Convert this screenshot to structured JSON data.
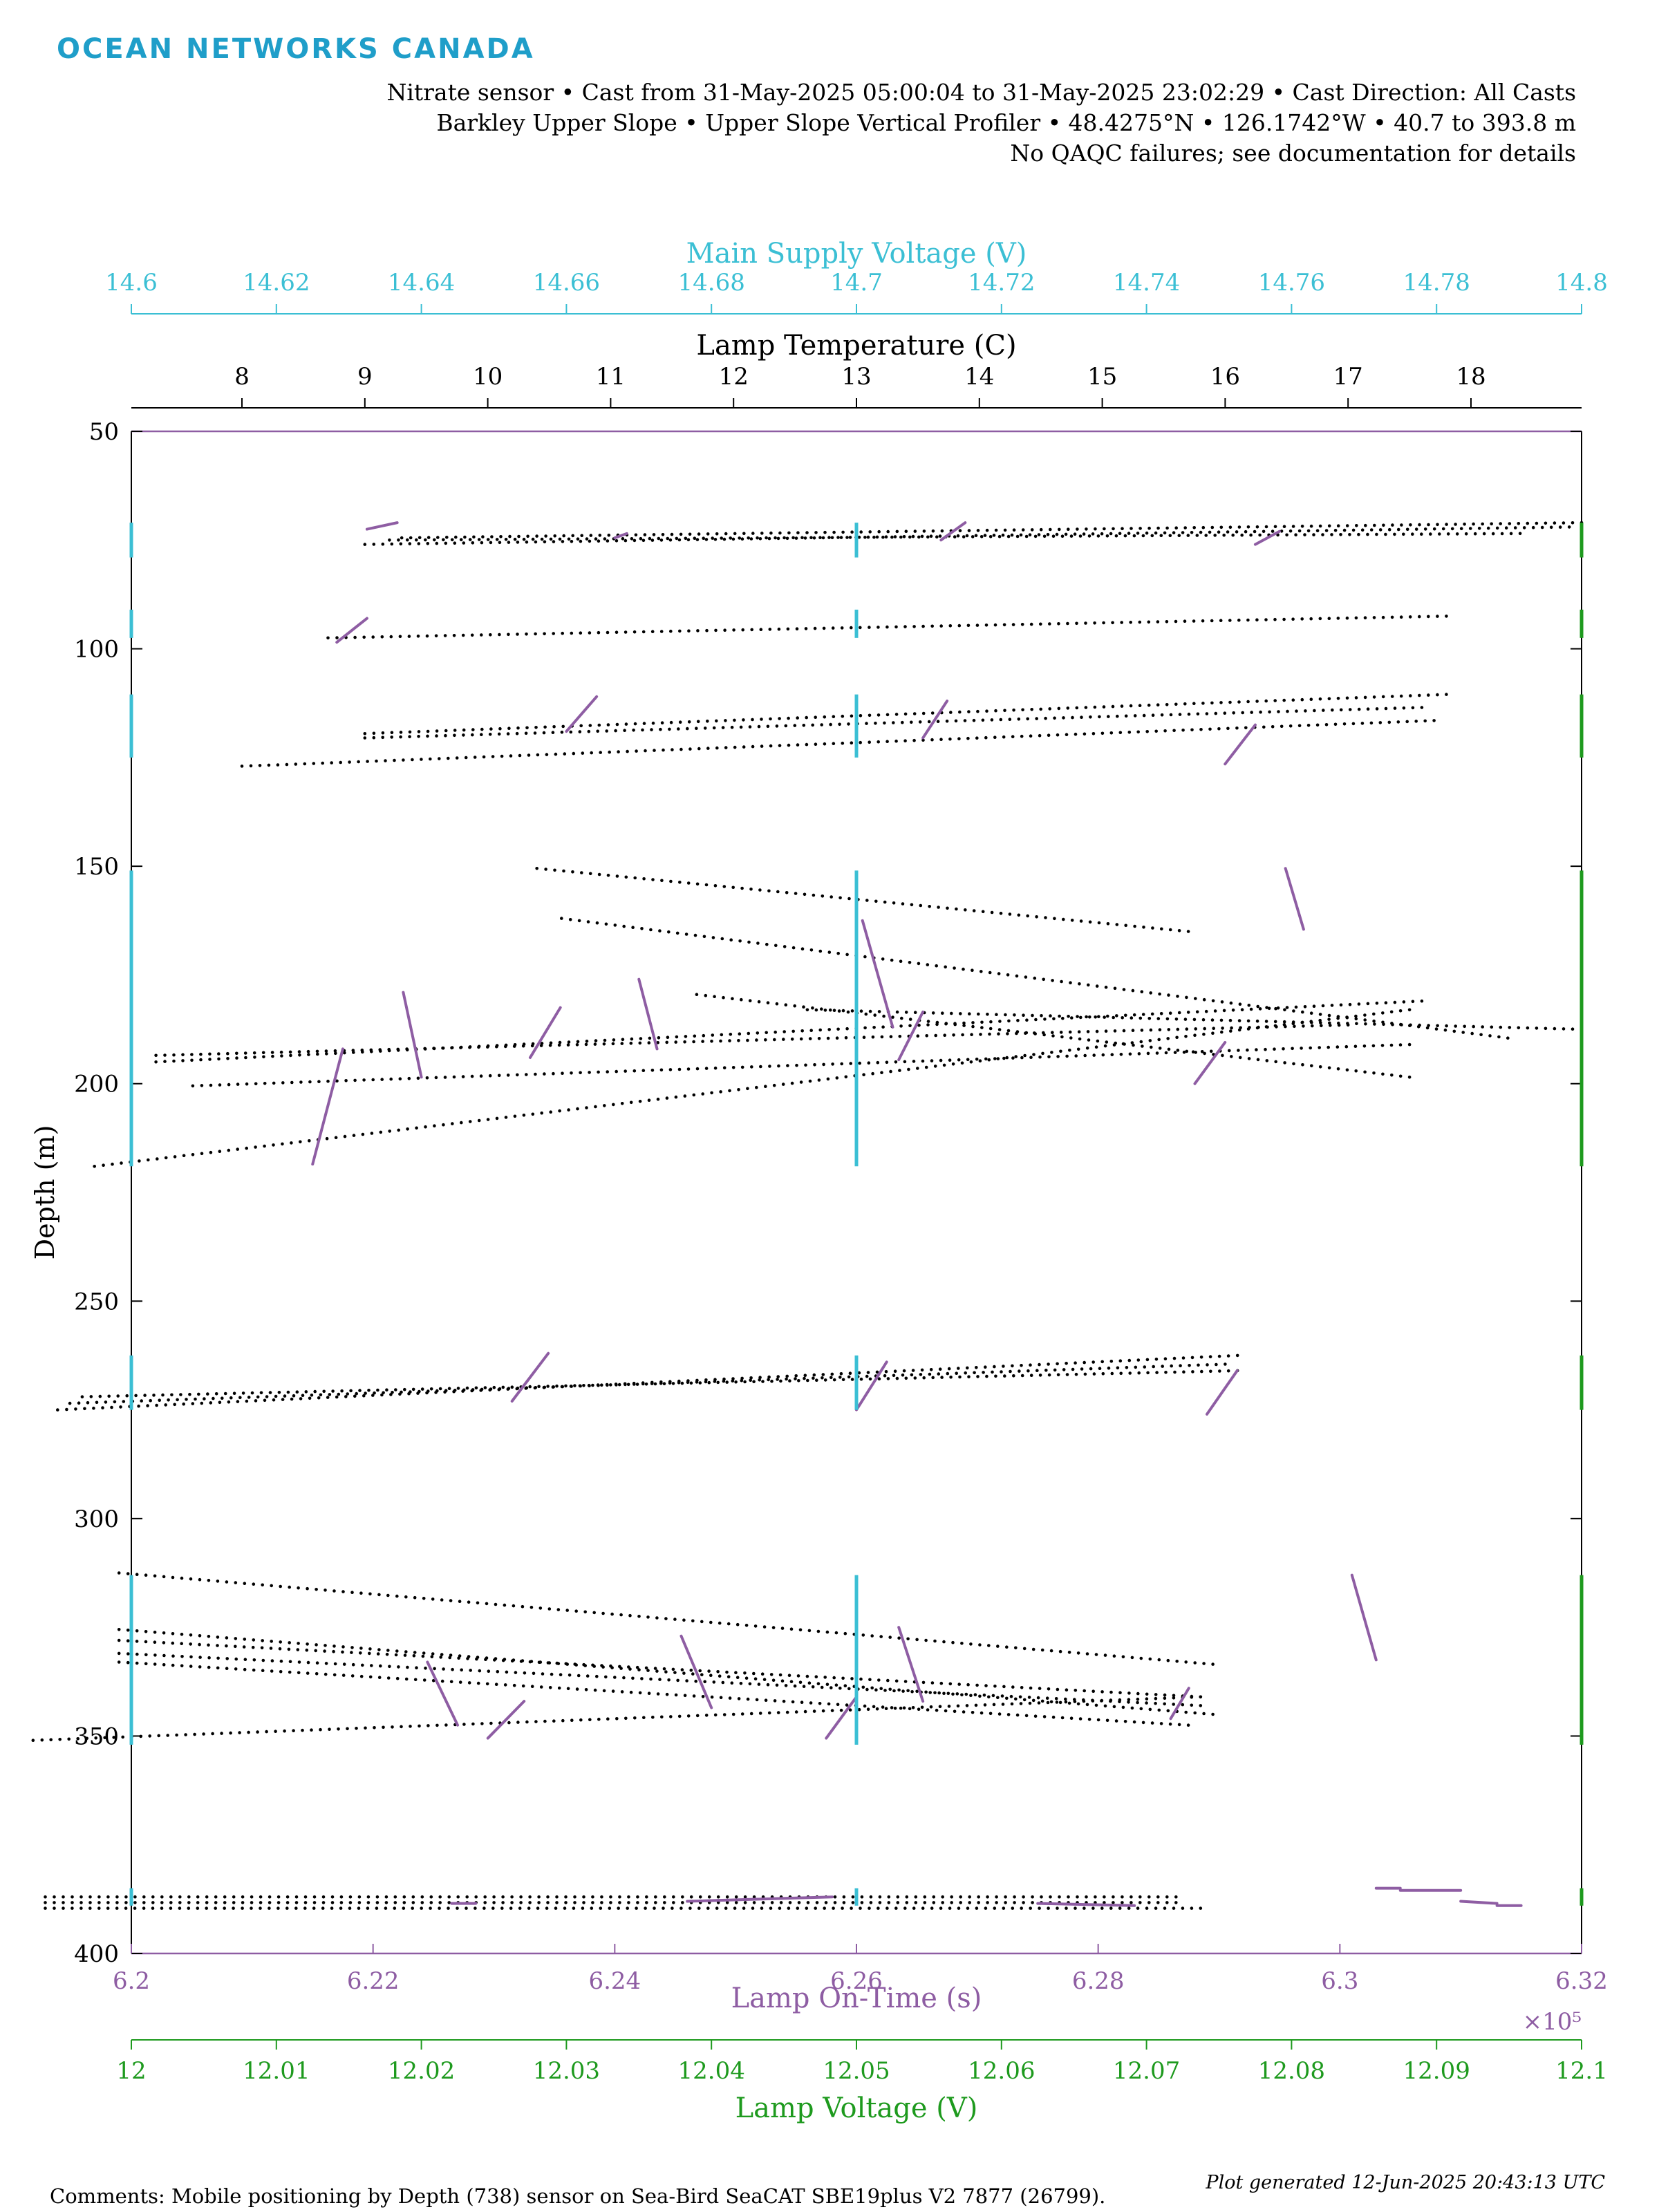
{
  "header": {
    "logo": "OCEAN NETWORKS CANADA",
    "line1": "Nitrate sensor • Cast from 31-May-2025 05:00:04 to 31-May-2025 23:02:29 • Cast Direction: All Casts",
    "line2": "Barkley Upper Slope • Upper Slope Vertical Profiler • 48.4275°N • 126.1742°W • 40.7 to 393.8 m",
    "line3": "No QAQC failures; see documentation for details"
  },
  "footer": {
    "comments": "Comments: Mobile positioning by Depth (738) sensor on Sea-Bird SeaCAT SBE19plus V2 7877 (26799).",
    "generated": "Plot generated 12-Jun-2025 20:43:13 UTC"
  },
  "colors": {
    "supply": "#3bbfd4",
    "lampTime": "#8e5da3",
    "lampVoltage": "#1e9a1e",
    "temperature": "#000000",
    "frame": "#8e5da3"
  },
  "chart_data": {
    "type": "scatter",
    "ylabel": "Depth (m)",
    "ylim": [
      400,
      50
    ],
    "yticks": [
      "50",
      "100",
      "150",
      "200",
      "250",
      "300",
      "350",
      "400"
    ],
    "grid": false,
    "axes": {
      "supply": {
        "label": "Main Supply Voltage (V)",
        "range": [
          14.6,
          14.8
        ],
        "ticks": [
          "14.6",
          "14.62",
          "14.64",
          "14.66",
          "14.68",
          "14.7",
          "14.72",
          "14.74",
          "14.76",
          "14.78",
          "14.8"
        ]
      },
      "temperature": {
        "label": "Lamp Temperature (C)",
        "range": [
          7.1,
          18.9
        ],
        "ticks": [
          "8",
          "9",
          "10",
          "11",
          "12",
          "13",
          "14",
          "15",
          "16",
          "17",
          "18"
        ]
      },
      "lampTime": {
        "label": "Lamp On-Time (s)",
        "range": [
          620000,
          632000
        ],
        "multiplier": "×10⁵",
        "ticks": [
          "6.2",
          "6.22",
          "6.24",
          "6.26",
          "6.28",
          "6.3",
          "6.32"
        ]
      },
      "lampVoltage": {
        "label": "Lamp Voltage (V)",
        "range": [
          12.0,
          12.1
        ],
        "ticks": [
          "12",
          "12.01",
          "12.02",
          "12.03",
          "12.04",
          "12.05",
          "12.06",
          "12.07",
          "12.08",
          "12.09",
          "12.1"
        ]
      }
    },
    "series": [
      {
        "name": "Lamp Temperature (C)",
        "note_style": "black dotted tracks",
        "tracks": [
          [
            [
              9.0,
              76.0
            ],
            [
              18.8,
              72.0
            ]
          ],
          [
            [
              9.2,
              75.0
            ],
            [
              18.4,
              73.5
            ]
          ],
          [
            [
              9.3,
              74.5
            ],
            [
              18.9,
              71.0
            ]
          ],
          [
            [
              8.7,
              97.5
            ],
            [
              17.8,
              92.5
            ]
          ],
          [
            [
              9.0,
              119.5
            ],
            [
              17.8,
              110.5
            ]
          ],
          [
            [
              9.0,
              120.5
            ],
            [
              17.6,
              113.5
            ]
          ],
          [
            [
              8.0,
              127.0
            ],
            [
              17.7,
              116.5
            ]
          ],
          [
            [
              10.4,
              150.5
            ],
            [
              15.7,
              165.0
            ]
          ],
          [
            [
              10.6,
              162.0
            ],
            [
              18.3,
              189.5
            ]
          ],
          [
            [
              11.7,
              179.5
            ],
            [
              17.5,
              198.5
            ]
          ],
          [
            [
              12.6,
              183.0
            ],
            [
              18.9,
              187.5
            ]
          ],
          [
            [
              7.3,
              195.0
            ],
            [
              17.6,
              181.0
            ]
          ],
          [
            [
              7.3,
              193.5
            ],
            [
              17.0,
              186.5
            ]
          ],
          [
            [
              7.6,
              200.5
            ],
            [
              17.5,
              191.0
            ]
          ],
          [
            [
              6.8,
              219.0
            ],
            [
              17.5,
              183.0
            ]
          ],
          [
            [
              6.5,
              275.0
            ],
            [
              16.1,
              262.5
            ]
          ],
          [
            [
              6.6,
              273.5
            ],
            [
              16.0,
              264.5
            ]
          ],
          [
            [
              6.7,
              272.0
            ],
            [
              16.1,
              266.0
            ]
          ],
          [
            [
              7.0,
              312.5
            ],
            [
              15.9,
              333.5
            ]
          ],
          [
            [
              7.0,
              325.5
            ],
            [
              15.9,
              345.0
            ]
          ],
          [
            [
              7.0,
              328.0
            ],
            [
              15.8,
              341.0
            ]
          ],
          [
            [
              7.0,
              331.0
            ],
            [
              15.8,
              343.0
            ]
          ],
          [
            [
              7.0,
              333.0
            ],
            [
              15.7,
              347.5
            ]
          ],
          [
            [
              6.3,
              351.0
            ],
            [
              15.8,
              341.0
            ]
          ],
          [
            [
              6.4,
              387.0
            ],
            [
              15.6,
              387.0
            ]
          ],
          [
            [
              6.4,
              388.3
            ],
            [
              15.6,
              388.3
            ]
          ],
          [
            [
              6.4,
              389.6
            ],
            [
              15.8,
              389.6
            ]
          ]
        ]
      },
      {
        "name": "Lamp On-Time (s)",
        "segments": [
          [
            [
              621950,
              72.5
            ],
            [
              622200,
              71.0
            ]
          ],
          [
            [
              621700,
              98.5
            ],
            [
              621950,
              93.0
            ]
          ],
          [
            [
              624000,
              74.5
            ],
            [
              624100,
              73.5
            ]
          ],
          [
            [
              626700,
              75.0
            ],
            [
              626900,
              71.0
            ]
          ],
          [
            [
              629300,
              76.0
            ],
            [
              629500,
              73.0
            ]
          ],
          [
            [
              623600,
              119.0
            ],
            [
              623850,
              111.0
            ]
          ],
          [
            [
              626550,
              120.5
            ],
            [
              626750,
              112.0
            ]
          ],
          [
            [
              629050,
              126.5
            ],
            [
              629300,
              117.5
            ]
          ],
          [
            [
              629550,
              150.5
            ],
            [
              629700,
              164.5
            ]
          ],
          [
            [
              626050,
              162.5
            ],
            [
              626300,
              187.0
            ]
          ],
          [
            [
              622250,
              179.0
            ],
            [
              622400,
              198.5
            ]
          ],
          [
            [
              623300,
              194.0
            ],
            [
              623550,
              182.5
            ]
          ],
          [
            [
              624200,
              176.0
            ],
            [
              624350,
              192.0
            ]
          ],
          [
            [
              626350,
              194.5
            ],
            [
              626550,
              183.5
            ]
          ],
          [
            [
              628800,
              200.0
            ],
            [
              629050,
              190.5
            ]
          ],
          [
            [
              621500,
              218.5
            ],
            [
              621750,
              192.0
            ]
          ],
          [
            [
              623150,
              273.0
            ],
            [
              623450,
              262.0
            ]
          ],
          [
            [
              626000,
              275.0
            ],
            [
              626250,
              264.0
            ]
          ],
          [
            [
              628900,
              276.0
            ],
            [
              629150,
              266.0
            ]
          ],
          [
            [
              630100,
              313.0
            ],
            [
              630300,
              332.5
            ]
          ],
          [
            [
              622450,
              333.0
            ],
            [
              622700,
              347.5
            ]
          ],
          [
            [
              622950,
              350.5
            ],
            [
              623250,
              342.0
            ]
          ],
          [
            [
              624550,
              327.0
            ],
            [
              624800,
              343.5
            ]
          ],
          [
            [
              625750,
              350.5
            ],
            [
              626000,
              341.0
            ]
          ],
          [
            [
              626350,
              325.0
            ],
            [
              626550,
              342.0
            ]
          ],
          [
            [
              628600,
              346.0
            ],
            [
              628750,
              339.0
            ]
          ],
          [
            [
              622650,
              388.5
            ],
            [
              622850,
              388.5
            ]
          ],
          [
            [
              624600,
              388.0
            ],
            [
              625800,
              387.0
            ]
          ],
          [
            [
              627500,
              388.5
            ],
            [
              628300,
              389.0
            ]
          ],
          [
            [
              630300,
              385.0
            ],
            [
              630500,
              385.0
            ]
          ],
          [
            [
              630500,
              385.5
            ],
            [
              631000,
              385.5
            ]
          ],
          [
            [
              631000,
              388.0
            ],
            [
              631300,
              388.5
            ]
          ],
          [
            [
              631300,
              389.0
            ],
            [
              631500,
              389.0
            ]
          ]
        ]
      },
      {
        "name": "Main Supply Voltage (V)",
        "points": [
          [
            14.7,
            75.0
          ],
          [
            14.7,
            95.0
          ],
          [
            14.7,
            117.0
          ],
          [
            14.7,
            185.0
          ],
          [
            14.7,
            269.0
          ],
          [
            14.7,
            333.0
          ],
          [
            14.7,
            387.0
          ]
        ],
        "ranges": [
          [
            71.0,
            79.0
          ],
          [
            91.0,
            97.5
          ],
          [
            110.5,
            125.0
          ],
          [
            151.0,
            219.0
          ],
          [
            262.5,
            275.0
          ],
          [
            313.0,
            352.0
          ],
          [
            385.0,
            389.0
          ]
        ]
      }
    ]
  }
}
